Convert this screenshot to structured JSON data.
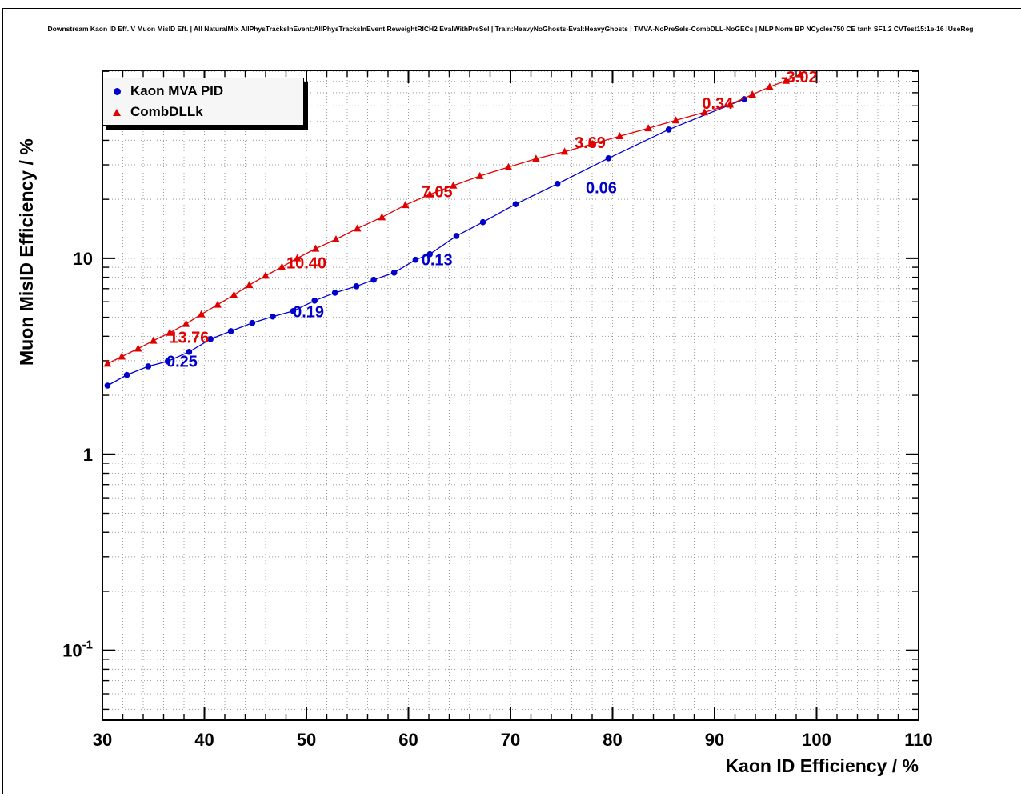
{
  "chart_data": {
    "type": "line",
    "title": "Downstream Kaon ID Eff. V Muon MisID Eff. | All NaturalMix AllPhysTracksInEvent:AllPhysTracksInEvent ReweightRICH2 EvalWithPreSel | Train:HeavyNoGhosts-Eval:HeavyGhosts | TMVA-NoPreSels-CombDLL-NoGECs | MLP Norm BP NCycles750 CE tanh SF1.2 CVTest15:1e-16 !UseReg",
    "xlabel": "Kaon ID Efficiency / %",
    "ylabel": "Muon MisID Efficiency / %",
    "xlim": [
      30,
      110
    ],
    "ylim": [
      0.044,
      91
    ],
    "y_scale": "log",
    "grid": true,
    "x_ticks": [
      30,
      40,
      50,
      60,
      70,
      80,
      90,
      100,
      110
    ],
    "x_minor_step": 2,
    "y_ticks": [
      {
        "value": 0.1,
        "label": "10",
        "exp": "-1"
      },
      {
        "value": 1,
        "label": "1",
        "exp": ""
      },
      {
        "value": 10,
        "label": "10",
        "exp": ""
      }
    ],
    "legend": {
      "position": "top-left",
      "entries": [
        {
          "label": "Kaon MVA PID",
          "marker": "circle-icon",
          "color": "#0000cc"
        },
        {
          "label": "CombDLLk",
          "marker": "triangle-icon",
          "color": "#e10000"
        }
      ]
    },
    "series": [
      {
        "name": "Kaon MVA PID",
        "color": "#0000cc",
        "marker": "circle",
        "points": [
          [
            30.5,
            2.24
          ],
          [
            32.4,
            2.54
          ],
          [
            34.5,
            2.81
          ],
          [
            36.4,
            2.98
          ],
          [
            38.5,
            3.33
          ],
          [
            40.6,
            3.87
          ],
          [
            42.6,
            4.25
          ],
          [
            44.7,
            4.68
          ],
          [
            46.7,
            5.04
          ],
          [
            48.7,
            5.38
          ],
          [
            50.8,
            6.08
          ],
          [
            52.8,
            6.67
          ],
          [
            54.9,
            7.2
          ],
          [
            56.6,
            7.77
          ],
          [
            58.6,
            8.45
          ],
          [
            60.7,
            9.83
          ],
          [
            62.1,
            10.5
          ],
          [
            64.7,
            13.0
          ],
          [
            67.3,
            15.3
          ],
          [
            70.5,
            18.9
          ],
          [
            74.6,
            24.0
          ],
          [
            79.6,
            32.4
          ],
          [
            85.5,
            45.4
          ],
          [
            92.9,
            64.9
          ]
        ]
      },
      {
        "name": "CombDLLk",
        "color": "#e10000",
        "marker": "triangle",
        "points": [
          [
            30.5,
            2.9
          ],
          [
            31.9,
            3.15
          ],
          [
            33.5,
            3.46
          ],
          [
            35.0,
            3.8
          ],
          [
            36.6,
            4.17
          ],
          [
            38.2,
            4.63
          ],
          [
            39.7,
            5.18
          ],
          [
            41.3,
            5.8
          ],
          [
            42.9,
            6.5
          ],
          [
            44.4,
            7.3
          ],
          [
            46.0,
            8.15
          ],
          [
            47.6,
            9.03
          ],
          [
            49.1,
            10.0
          ],
          [
            50.9,
            11.2
          ],
          [
            52.9,
            12.5
          ],
          [
            55.0,
            14.2
          ],
          [
            57.4,
            16.2
          ],
          [
            59.7,
            18.7
          ],
          [
            62.1,
            21.2
          ],
          [
            64.4,
            23.5
          ],
          [
            67.0,
            26.3
          ],
          [
            69.8,
            29.2
          ],
          [
            72.5,
            32.2
          ],
          [
            75.3,
            35.0
          ],
          [
            78.0,
            38.3
          ],
          [
            80.7,
            42.0
          ],
          [
            83.5,
            46.1
          ],
          [
            86.2,
            50.6
          ],
          [
            89.0,
            55.6
          ],
          [
            91.5,
            60.9
          ],
          [
            93.7,
            68.5
          ],
          [
            95.4,
            75.0
          ],
          [
            97.0,
            80.6
          ],
          [
            98.4,
            87.0
          ]
        ]
      }
    ],
    "annotations": [
      {
        "text": "0.25",
        "x": 37.8,
        "y": 2.8,
        "color": "#0000cc"
      },
      {
        "text": "0.19",
        "x": 50.2,
        "y": 5.0,
        "color": "#0000cc"
      },
      {
        "text": "0.13",
        "x": 62.8,
        "y": 9.2,
        "color": "#0000cc"
      },
      {
        "text": "0.06",
        "x": 78.9,
        "y": 21.5,
        "color": "#0000cc"
      },
      {
        "text": "13.76",
        "x": 38.5,
        "y": 3.7,
        "color": "#e10000"
      },
      {
        "text": "10.40",
        "x": 50.0,
        "y": 8.9,
        "color": "#e10000"
      },
      {
        "text": "7.05",
        "x": 62.8,
        "y": 20.5,
        "color": "#e10000"
      },
      {
        "text": "3.69",
        "x": 77.8,
        "y": 36.5,
        "color": "#e10000"
      },
      {
        "text": "0.34",
        "x": 90.3,
        "y": 58.0,
        "color": "#e10000"
      },
      {
        "text": "-3.02",
        "x": 98.3,
        "y": 79.0,
        "color": "#e10000"
      }
    ]
  }
}
